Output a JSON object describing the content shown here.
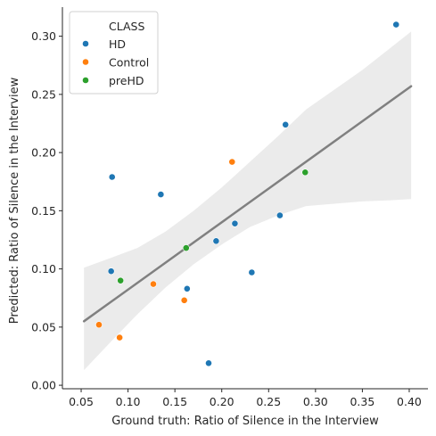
{
  "chart_data": {
    "type": "scatter",
    "title": "",
    "xlabel": "Ground truth: Ratio of Silence in the Interview",
    "ylabel": "Predicted: Ratio of Silence in the Interview",
    "xlim": [
      0.03,
      0.42
    ],
    "ylim": [
      -0.003,
      0.325
    ],
    "xticks": [
      0.05,
      0.1,
      0.15,
      0.2,
      0.25,
      0.3,
      0.35,
      0.4
    ],
    "xtick_labels": [
      "0.05",
      "0.10",
      "0.15",
      "0.20",
      "0.25",
      "0.30",
      "0.35",
      "0.40"
    ],
    "yticks": [
      0.0,
      0.05,
      0.1,
      0.15,
      0.2,
      0.25,
      0.3
    ],
    "ytick_labels": [
      "0.00",
      "0.05",
      "0.10",
      "0.15",
      "0.20",
      "0.25",
      "0.30"
    ],
    "grid": false,
    "legend": {
      "title": "CLASS",
      "placement": "top-left",
      "entries": [
        "HD",
        "Control",
        "preHD"
      ]
    },
    "series": [
      {
        "name": "HD",
        "color": "#1f77b4",
        "points": [
          [
            0.386,
            0.31
          ],
          [
            0.268,
            0.224
          ],
          [
            0.083,
            0.179
          ],
          [
            0.135,
            0.164
          ],
          [
            0.262,
            0.146
          ],
          [
            0.214,
            0.139
          ],
          [
            0.194,
            0.124
          ],
          [
            0.082,
            0.098
          ],
          [
            0.232,
            0.097
          ],
          [
            0.163,
            0.083
          ],
          [
            0.186,
            0.019
          ]
        ]
      },
      {
        "name": "Control",
        "color": "#ff7f0e",
        "points": [
          [
            0.211,
            0.192
          ],
          [
            0.127,
            0.087
          ],
          [
            0.16,
            0.073
          ],
          [
            0.069,
            0.052
          ],
          [
            0.091,
            0.041
          ]
        ]
      },
      {
        "name": "preHD",
        "color": "#2ca02c",
        "points": [
          [
            0.289,
            0.183
          ],
          [
            0.162,
            0.118
          ],
          [
            0.092,
            0.09
          ]
        ]
      }
    ],
    "regression": {
      "color": "#808080",
      "band_color": "#ebebeb",
      "line": [
        [
          0.053,
          0.055
        ],
        [
          0.402,
          0.257
        ]
      ],
      "ci_band": [
        [
          0.053,
          0.101,
          0.013
        ],
        [
          0.08,
          0.109,
          0.036
        ],
        [
          0.11,
          0.118,
          0.061
        ],
        [
          0.14,
          0.132,
          0.084
        ],
        [
          0.17,
          0.15,
          0.104
        ],
        [
          0.2,
          0.17,
          0.121
        ],
        [
          0.23,
          0.192,
          0.136
        ],
        [
          0.26,
          0.214,
          0.146
        ],
        [
          0.29,
          0.237,
          0.154
        ],
        [
          0.32,
          0.254,
          0.156
        ],
        [
          0.35,
          0.271,
          0.158
        ],
        [
          0.38,
          0.29,
          0.159
        ],
        [
          0.402,
          0.304,
          0.16
        ]
      ]
    }
  }
}
